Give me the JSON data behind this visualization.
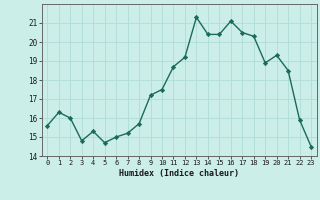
{
  "xlabel": "Humidex (Indice chaleur)",
  "x": [
    0,
    1,
    2,
    3,
    4,
    5,
    6,
    7,
    8,
    9,
    10,
    11,
    12,
    13,
    14,
    15,
    16,
    17,
    18,
    19,
    20,
    21,
    22,
    23
  ],
  "y": [
    15.6,
    16.3,
    16.0,
    14.8,
    15.3,
    14.7,
    15.0,
    15.2,
    15.7,
    17.2,
    17.5,
    18.7,
    19.2,
    21.3,
    20.4,
    20.4,
    21.1,
    20.5,
    20.3,
    18.9,
    19.3,
    18.5,
    15.9,
    14.5
  ],
  "line_color": "#1a6b5a",
  "marker": "D",
  "marker_size": 2.2,
  "bg_color": "#cceee8",
  "grid_color": "#b0ddd5",
  "tick_color": "#1a1a1a",
  "ylim": [
    14,
    22
  ],
  "yticks": [
    14,
    15,
    16,
    17,
    18,
    19,
    20,
    21
  ],
  "line_width": 1.0,
  "font_color": "#1a1a1a"
}
